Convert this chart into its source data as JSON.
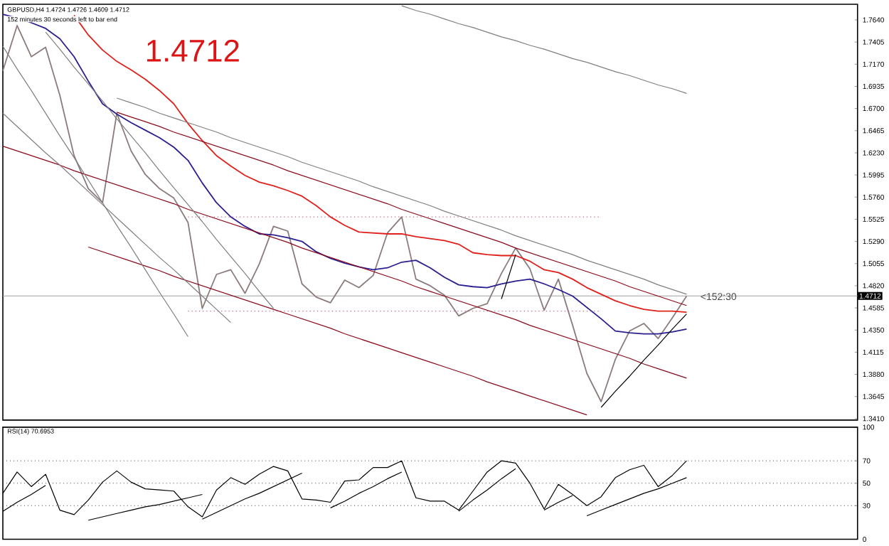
{
  "chart_data": [
    {
      "type": "line",
      "title": "GBPUSD,H4  1.4724 1.4726 1.4609 1.4712",
      "subtitle": "152 minutes 30 seconds left to bar end",
      "ylim": [
        1.3395,
        1.7806
      ],
      "tick_labels": "y",
      "marker": "none",
      "categories": [
        null,
        null,
        null,
        null,
        null,
        null,
        null,
        null,
        null,
        null,
        null,
        null,
        null,
        null,
        null,
        null,
        null,
        null,
        null,
        null,
        null,
        null,
        null,
        null,
        null,
        null,
        null,
        null,
        null,
        null,
        null,
        null,
        null,
        null,
        null,
        null,
        null,
        null,
        null,
        null,
        null,
        null,
        null,
        null,
        null,
        null,
        null,
        null,
        null
      ],
      "yticks": [
        {
          "value": 1.341,
          "label": "1.3410"
        },
        {
          "value": 1.3645,
          "label": "1.3645"
        },
        {
          "value": 1.388,
          "label": "1.3880"
        },
        {
          "value": 1.4115,
          "label": "1.4115"
        },
        {
          "value": 1.435,
          "label": "1.4350"
        },
        {
          "value": 1.4585,
          "label": "1.4585"
        },
        {
          "value": 1.482,
          "label": "1.4820"
        },
        {
          "value": 1.5055,
          "label": "1.5055"
        },
        {
          "value": 1.529,
          "label": "1.5290"
        },
        {
          "value": 1.5525,
          "label": "1.5525"
        },
        {
          "value": 1.576,
          "label": "1.5760"
        },
        {
          "value": 1.5995,
          "label": "1.5995"
        },
        {
          "value": 1.623,
          "label": "1.6230"
        },
        {
          "value": 1.6465,
          "label": "1.6465"
        },
        {
          "value": 1.67,
          "label": "1.6700"
        },
        {
          "value": 1.6935,
          "label": "1.6935"
        },
        {
          "value": 1.717,
          "label": "1.7170"
        },
        {
          "value": 1.7405,
          "label": "1.7405"
        },
        {
          "value": 1.764,
          "label": "1.7640"
        }
      ],
      "ref_lines": [
        {
          "axis": "y",
          "value": 1.4712,
          "label": "1.4712",
          "color": "#a0a0a0"
        }
      ],
      "annotations": [
        "1.4712",
        "<152:30"
      ],
      "series": [
        {
          "color": "#8c7b7b",
          "values": [
            1.71,
            1.758,
            1.725,
            1.735,
            1.684,
            1.62,
            1.585,
            1.57,
            1.665,
            1.625,
            1.6,
            1.585,
            1.575,
            1.549,
            1.458,
            1.494,
            1.499,
            1.474,
            1.505,
            1.545,
            1.54,
            1.484,
            1.47,
            1.464,
            1.488,
            1.48,
            1.493,
            1.538,
            1.555,
            1.489,
            1.482,
            1.472,
            1.45,
            1.458,
            1.463,
            1.495,
            1.522,
            1.5,
            1.456,
            1.489,
            1.44,
            1.389,
            1.359,
            1.404,
            1.434,
            1.442,
            1.426,
            1.448,
            1.471
          ]
        },
        {
          "color": "#e0201b",
          "values": [
            null,
            null,
            null,
            null,
            null,
            1.769,
            1.748,
            1.732,
            1.72,
            1.711,
            1.701,
            1.689,
            1.675,
            1.654,
            1.636,
            1.62,
            1.609,
            1.599,
            1.592,
            1.588,
            1.583,
            1.577,
            1.567,
            1.555,
            1.546,
            1.539,
            1.538,
            1.537,
            1.537,
            1.534,
            1.532,
            1.53,
            1.526,
            1.517,
            1.515,
            1.514,
            1.514,
            1.508,
            1.499,
            1.496,
            1.489,
            1.48,
            1.473,
            1.466,
            1.461,
            1.457,
            1.455,
            1.455,
            1.454
          ]
        },
        {
          "color": "#2b1f8f",
          "values": [
            1.77,
            1.766,
            1.761,
            1.755,
            1.744,
            1.725,
            1.699,
            1.675,
            1.664,
            1.655,
            1.647,
            1.639,
            1.629,
            1.615,
            1.591,
            1.57,
            1.555,
            1.545,
            1.537,
            1.536,
            1.533,
            1.529,
            1.518,
            1.511,
            1.506,
            1.502,
            1.499,
            1.501,
            1.507,
            1.509,
            1.501,
            1.491,
            1.483,
            1.481,
            1.48,
            1.484,
            1.487,
            1.489,
            1.484,
            1.478,
            1.471,
            1.459,
            1.447,
            1.434,
            1.432,
            1.431,
            1.431,
            1.433,
            1.436
          ]
        },
        {
          "color": "#8b0a1a",
          "values": [
            null,
            null,
            null,
            null,
            null,
            null,
            null,
            null,
            1.666,
            1.661,
            1.656,
            1.651,
            1.645,
            1.64,
            1.635,
            1.63,
            1.625,
            1.62,
            1.615,
            1.61,
            1.604,
            1.599,
            1.594,
            1.589,
            1.584,
            1.579,
            1.574,
            1.569,
            1.563,
            1.558,
            1.553,
            1.548,
            1.543,
            1.538,
            1.533,
            1.528,
            1.522,
            1.517,
            1.512,
            1.507,
            1.502,
            1.497,
            1.492,
            1.487,
            1.481,
            1.476,
            1.471,
            1.466,
            1.461
          ]
        },
        {
          "color": "#8b0a1a",
          "values": [
            1.63,
            1.625,
            1.62,
            1.615,
            1.61,
            1.604,
            1.599,
            1.594,
            1.589,
            1.584,
            1.579,
            1.574,
            1.569,
            1.563,
            1.558,
            1.553,
            1.548,
            1.543,
            1.538,
            1.533,
            1.528,
            1.522,
            1.517,
            1.512,
            1.507,
            1.502,
            1.497,
            1.492,
            1.487,
            1.481,
            1.476,
            1.471,
            1.466,
            1.461,
            1.456,
            1.451,
            1.446,
            1.44,
            1.435,
            1.43,
            1.425,
            1.42,
            1.415,
            1.41,
            1.405,
            1.399,
            1.394,
            1.389,
            1.384
          ]
        },
        {
          "color": "#8b0a1a",
          "values": [
            null,
            null,
            null,
            null,
            null,
            null,
            1.523,
            1.518,
            1.513,
            1.508,
            1.503,
            1.498,
            1.492,
            1.487,
            1.482,
            1.477,
            1.472,
            1.467,
            1.462,
            1.457,
            1.452,
            1.447,
            1.442,
            1.437,
            1.431,
            1.426,
            1.421,
            1.416,
            1.411,
            1.406,
            1.401,
            1.396,
            1.391,
            1.386,
            1.38,
            1.375,
            1.37,
            1.365,
            1.36,
            1.355,
            1.35,
            1.345,
            null,
            null,
            null,
            null,
            null,
            null,
            null
          ]
        },
        {
          "color": "#7f7f7f",
          "values": [
            null,
            null,
            null,
            null,
            null,
            null,
            null,
            null,
            1.681,
            1.676,
            1.671,
            1.665,
            1.66,
            1.655,
            1.65,
            1.645,
            1.639,
            1.634,
            1.629,
            1.624,
            1.619,
            1.613,
            1.608,
            1.603,
            1.598,
            1.593,
            1.587,
            1.582,
            1.577,
            1.572,
            1.567,
            1.561,
            1.556,
            1.551,
            1.546,
            1.541,
            1.535,
            1.53,
            1.525,
            1.52,
            1.515,
            1.509,
            1.504,
            1.499,
            1.494,
            1.489,
            1.483,
            1.478,
            1.473
          ]
        },
        {
          "color": "#7f7f7f",
          "values": [
            null,
            null,
            null,
            null,
            null,
            null,
            null,
            null,
            null,
            null,
            null,
            null,
            null,
            null,
            null,
            null,
            null,
            null,
            null,
            null,
            null,
            null,
            null,
            null,
            null,
            null,
            null,
            null,
            1.779,
            1.774,
            1.77,
            1.765,
            1.76,
            1.756,
            1.751,
            1.746,
            1.742,
            1.737,
            1.733,
            1.728,
            1.723,
            1.719,
            1.714,
            1.709,
            1.705,
            1.7,
            1.695,
            1.691,
            1.686
          ]
        },
        {
          "color": "#7f7f7f",
          "values": [
            1.736,
            1.712,
            1.689,
            1.665,
            1.641,
            1.618,
            1.594,
            1.57,
            1.546,
            1.523,
            1.499,
            1.475,
            1.452,
            1.428,
            null,
            null,
            null,
            null,
            null,
            null,
            null,
            null,
            null,
            null,
            null,
            null,
            null,
            null,
            null,
            null,
            null,
            null,
            null,
            null,
            null,
            null,
            null,
            null,
            null,
            null,
            null,
            null,
            null,
            null,
            null,
            null,
            null,
            null,
            null
          ]
        },
        {
          "color": "#7f7f7f",
          "values": [
            1.665,
            1.651,
            1.637,
            1.623,
            1.61,
            1.596,
            1.582,
            1.568,
            1.554,
            1.54,
            1.526,
            1.512,
            1.499,
            1.485,
            1.471,
            1.457,
            1.443,
            null,
            null,
            null,
            null,
            null,
            null,
            null,
            null,
            null,
            null,
            null,
            null,
            null,
            null,
            null,
            null,
            null,
            null,
            null,
            null,
            null,
            null,
            null,
            null,
            null,
            null,
            null,
            null,
            null,
            null,
            null,
            null
          ]
        },
        {
          "color": "#7f7f7f",
          "values": [
            null,
            null,
            null,
            1.751,
            1.733,
            1.714,
            1.696,
            1.678,
            1.659,
            1.641,
            1.623,
            1.604,
            1.586,
            1.568,
            1.55,
            1.531,
            1.513,
            1.495,
            1.476,
            1.458,
            null,
            null,
            null,
            null,
            null,
            null,
            null,
            null,
            null,
            null,
            null,
            null,
            null,
            null,
            null,
            null,
            null,
            null,
            null,
            null,
            null,
            null,
            null,
            null,
            null,
            null,
            null,
            null,
            null
          ]
        },
        {
          "color": "#000000",
          "values": [
            null,
            null,
            null,
            null,
            null,
            null,
            null,
            null,
            null,
            null,
            null,
            null,
            null,
            null,
            null,
            null,
            null,
            null,
            null,
            null,
            null,
            null,
            null,
            null,
            null,
            null,
            null,
            null,
            null,
            null,
            null,
            null,
            null,
            null,
            null,
            null,
            null,
            null,
            null,
            null,
            null,
            null,
            1.353,
            1.37,
            1.386,
            1.403,
            1.419,
            1.436,
            1.452
          ]
        },
        {
          "color": "#000000",
          "values": [
            null,
            null,
            null,
            null,
            null,
            null,
            null,
            null,
            null,
            null,
            null,
            null,
            null,
            null,
            null,
            null,
            null,
            null,
            null,
            null,
            null,
            null,
            null,
            null,
            null,
            null,
            null,
            null,
            null,
            null,
            null,
            null,
            null,
            null,
            null,
            1.468,
            1.515,
            null,
            null,
            null,
            null,
            null,
            null,
            null,
            null,
            null,
            null,
            null,
            null
          ]
        },
        {
          "color": "#c06080",
          "line_style": "dotted",
          "values": [
            null,
            null,
            null,
            null,
            null,
            null,
            null,
            null,
            null,
            null,
            null,
            null,
            null,
            1.555,
            1.555,
            1.555,
            1.555,
            1.555,
            1.555,
            1.555,
            1.555,
            1.555,
            1.555,
            1.555,
            1.555,
            1.555,
            1.555,
            1.555,
            1.555,
            1.555,
            1.555,
            1.555,
            1.555,
            1.555,
            1.555,
            1.555,
            1.555,
            1.555,
            1.555,
            1.555,
            1.555,
            1.555,
            1.555,
            null,
            null,
            null,
            null,
            null,
            null
          ]
        },
        {
          "color": "#c06080",
          "line_style": "dotted",
          "values": [
            null,
            null,
            null,
            null,
            null,
            null,
            null,
            null,
            null,
            null,
            null,
            null,
            null,
            1.455,
            1.455,
            1.455,
            1.455,
            1.455,
            1.455,
            1.455,
            1.455,
            1.455,
            1.455,
            1.455,
            1.455,
            1.455,
            1.455,
            1.455,
            1.455,
            1.455,
            1.455,
            1.455,
            1.455,
            1.455,
            1.455,
            1.455,
            1.455,
            1.455,
            1.455,
            1.455,
            1.455,
            1.455,
            1.455,
            null,
            null,
            null,
            null,
            null,
            null
          ]
        }
      ]
    },
    {
      "type": "line",
      "title": "RSI(14) 70.6953",
      "ylim": [
        0,
        100
      ],
      "yticks": [
        0,
        30,
        50,
        70,
        100
      ],
      "tick_labels": "y",
      "marker": "none",
      "categories": [
        null,
        null,
        null,
        null,
        null,
        null,
        null,
        null,
        null,
        null,
        null,
        null,
        null,
        null,
        null,
        null,
        null,
        null,
        null,
        null,
        null,
        null,
        null,
        null,
        null,
        null,
        null,
        null,
        null,
        null,
        null,
        null,
        null,
        null,
        null,
        null,
        null,
        null,
        null,
        null,
        null,
        null,
        null,
        null,
        null,
        null,
        null,
        null,
        null
      ],
      "ref_lines": [
        {
          "axis": "y",
          "value": 30,
          "color": "#404040",
          "line_style": "dotted"
        },
        {
          "axis": "y",
          "value": 50,
          "color": "#404040",
          "line_style": "dotted"
        },
        {
          "axis": "y",
          "value": 70,
          "color": "#404040",
          "line_style": "dotted"
        }
      ],
      "series": [
        {
          "color": "#000000",
          "values": [
            41,
            60,
            47,
            58,
            26,
            22,
            35,
            51,
            61,
            51,
            45,
            44,
            43,
            29,
            20,
            44,
            55,
            49,
            58,
            65,
            61,
            36,
            35,
            33,
            52,
            53,
            64,
            64,
            70,
            37,
            34,
            34,
            26,
            43,
            60,
            70,
            68,
            50,
            27,
            49,
            40,
            30,
            38,
            55,
            62,
            66,
            47,
            57,
            70
          ]
        },
        {
          "color": "#000000",
          "values": [
            25,
            33,
            40,
            48,
            null,
            null,
            null,
            null,
            null,
            null,
            null,
            null,
            null,
            null,
            null,
            null,
            null,
            null,
            null,
            null,
            null,
            null,
            null,
            null,
            null,
            null,
            null,
            null,
            null,
            null,
            null,
            null,
            null,
            null,
            null,
            null,
            null,
            null,
            null,
            null,
            null,
            null,
            null,
            null,
            null,
            null,
            null,
            null,
            null
          ]
        },
        {
          "color": "#000000",
          "values": [
            null,
            null,
            null,
            null,
            null,
            null,
            17,
            20,
            23,
            26,
            29,
            31,
            34,
            37,
            40,
            null,
            null,
            null,
            null,
            null,
            null,
            null,
            null,
            null,
            null,
            null,
            null,
            null,
            null,
            null,
            null,
            null,
            null,
            null,
            null,
            null,
            null,
            null,
            null,
            null,
            null,
            null,
            null,
            null,
            null,
            null,
            null,
            null,
            null
          ]
        },
        {
          "color": "#000000",
          "values": [
            null,
            null,
            null,
            null,
            null,
            null,
            null,
            null,
            null,
            null,
            null,
            null,
            null,
            null,
            18,
            24,
            30,
            36,
            41,
            47,
            53,
            59,
            null,
            null,
            null,
            null,
            null,
            null,
            null,
            null,
            null,
            null,
            null,
            null,
            null,
            null,
            null,
            null,
            null,
            null,
            null,
            null,
            null,
            null,
            null,
            null,
            null,
            null,
            null
          ]
        },
        {
          "color": "#000000",
          "values": [
            null,
            null,
            null,
            null,
            null,
            null,
            null,
            null,
            null,
            null,
            null,
            null,
            null,
            null,
            null,
            null,
            null,
            null,
            null,
            null,
            null,
            null,
            null,
            28,
            34,
            41,
            47,
            54,
            60,
            null,
            null,
            null,
            null,
            null,
            null,
            null,
            null,
            null,
            null,
            null,
            null,
            null,
            null,
            null,
            null,
            null,
            null,
            null,
            null
          ]
        },
        {
          "color": "#000000",
          "values": [
            null,
            null,
            null,
            null,
            null,
            null,
            null,
            null,
            null,
            null,
            null,
            null,
            null,
            null,
            null,
            null,
            null,
            null,
            null,
            null,
            null,
            null,
            null,
            null,
            null,
            null,
            null,
            null,
            null,
            null,
            null,
            null,
            25,
            35,
            44,
            54,
            63,
            null,
            null,
            null,
            null,
            null,
            null,
            null,
            null,
            null,
            null,
            null,
            null
          ]
        },
        {
          "color": "#000000",
          "values": [
            null,
            null,
            null,
            null,
            null,
            null,
            null,
            null,
            null,
            null,
            null,
            null,
            null,
            null,
            null,
            null,
            null,
            null,
            null,
            null,
            null,
            null,
            null,
            null,
            null,
            null,
            null,
            null,
            null,
            null,
            null,
            null,
            null,
            null,
            null,
            null,
            null,
            null,
            26,
            33,
            39,
            null,
            null,
            null,
            null,
            null,
            null,
            null,
            null
          ]
        },
        {
          "color": "#000000",
          "values": [
            null,
            null,
            null,
            null,
            null,
            null,
            null,
            null,
            null,
            null,
            null,
            null,
            null,
            null,
            null,
            null,
            null,
            null,
            null,
            null,
            null,
            null,
            null,
            null,
            null,
            null,
            null,
            null,
            null,
            null,
            null,
            null,
            null,
            null,
            null,
            null,
            null,
            null,
            null,
            null,
            null,
            21,
            26,
            31,
            36,
            41,
            45,
            50,
            55
          ]
        }
      ]
    }
  ]
}
